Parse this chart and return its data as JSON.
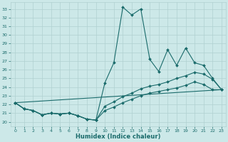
{
  "xlabel": "Humidex (Indice chaleur)",
  "xlim": [
    -0.5,
    23.5
  ],
  "ylim": [
    19.5,
    33.8
  ],
  "yticks": [
    20,
    21,
    22,
    23,
    24,
    25,
    26,
    27,
    28,
    29,
    30,
    31,
    32,
    33
  ],
  "xticks": [
    0,
    1,
    2,
    3,
    4,
    5,
    6,
    7,
    8,
    9,
    10,
    11,
    12,
    13,
    14,
    15,
    16,
    17,
    18,
    19,
    20,
    21,
    22,
    23
  ],
  "background_color": "#cce8e8",
  "grid_color": "#b0d0d0",
  "line_color": "#1a6b6b",
  "line1_y": [
    22.2,
    21.5,
    21.3,
    20.8,
    21.0,
    20.9,
    21.0,
    20.7,
    20.3,
    20.2,
    24.5,
    26.8,
    33.2,
    32.3,
    33.0,
    27.2,
    25.8,
    28.3,
    26.5,
    28.5,
    26.8,
    26.5,
    25.0,
    23.7
  ],
  "line2_y": [
    22.2,
    21.5,
    21.3,
    20.8,
    21.0,
    20.9,
    21.0,
    20.7,
    20.3,
    20.2,
    21.8,
    22.3,
    22.9,
    23.3,
    23.8,
    24.1,
    24.3,
    24.6,
    25.0,
    25.3,
    25.7,
    25.5,
    24.9,
    23.7
  ],
  "line3_y": [
    22.2,
    21.5,
    21.3,
    20.8,
    21.0,
    20.9,
    21.0,
    20.7,
    20.3,
    20.2,
    21.3,
    21.7,
    22.2,
    22.6,
    23.0,
    23.3,
    23.5,
    23.7,
    23.9,
    24.2,
    24.6,
    24.3,
    23.7,
    23.7
  ],
  "line4_y": [
    22.2,
    23.7
  ]
}
